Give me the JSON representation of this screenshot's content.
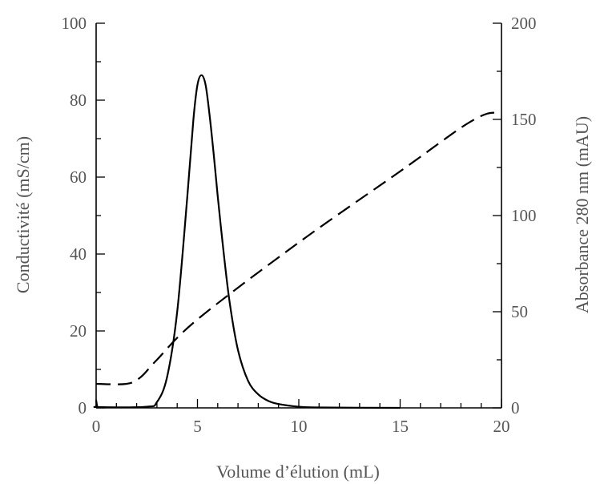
{
  "chart_data": {
    "type": "line",
    "title": "",
    "xlabel": "Volume d’élution (mL)",
    "ylabel_left": "Conductivité (mS/cm)",
    "ylabel_right": "Absorbance 280 nm (mAU)",
    "xlim": [
      0,
      20
    ],
    "ylim_left": [
      0,
      100
    ],
    "ylim_right": [
      0,
      200
    ],
    "x_ticks": [
      "0",
      "5",
      "10",
      "15",
      "20"
    ],
    "y_left_ticks": [
      "0",
      "20",
      "40",
      "60",
      "80",
      "100"
    ],
    "y_right_ticks": [
      "0",
      "50",
      "100",
      "150",
      "200"
    ],
    "grid": false,
    "legend": "none",
    "series": [
      {
        "axis": "left",
        "style": "solid",
        "x": [
          0,
          0.05,
          0.1,
          2.5,
          3.0,
          3.5,
          4.0,
          4.5,
          4.8,
          5.0,
          5.2,
          5.4,
          5.6,
          5.8,
          6.0,
          6.3,
          6.6,
          7.0,
          7.5,
          8.0,
          8.5,
          9.0,
          10.0,
          11.0,
          15.0
        ],
        "y": [
          2,
          0.5,
          0.2,
          0.3,
          1.5,
          8.0,
          25.0,
          55.0,
          75.0,
          84.0,
          86.5,
          84.0,
          76.0,
          66.0,
          55.0,
          40.0,
          27.0,
          15.0,
          7.0,
          3.5,
          1.8,
          1.0,
          0.3,
          0.1,
          0.0
        ]
      },
      {
        "axis": "right",
        "style": "dashed",
        "x": [
          0,
          1.5,
          2.2,
          3.0,
          5.0,
          10.0,
          15.0,
          17.5,
          18.5,
          19.3,
          20.0
        ],
        "y": [
          12.5,
          12.5,
          16,
          25,
          46,
          86,
          123,
          142,
          149,
          153,
          153.5
        ]
      }
    ]
  }
}
